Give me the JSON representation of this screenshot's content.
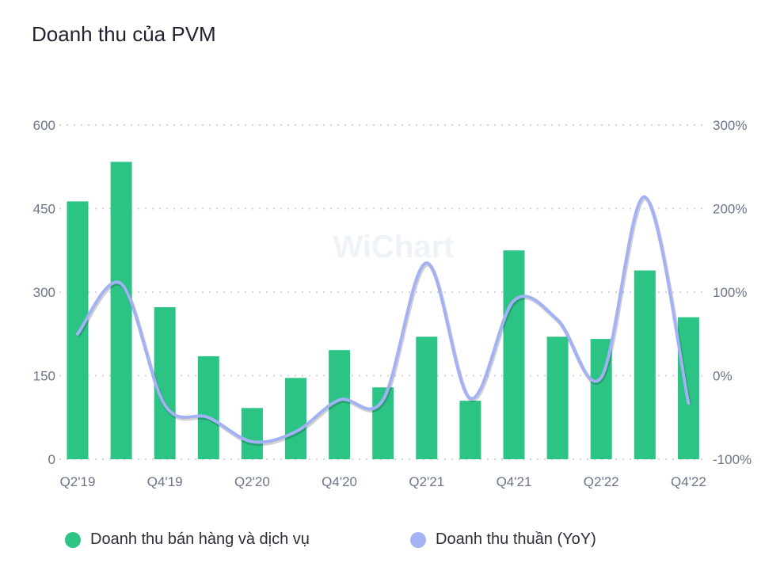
{
  "title": "Doanh thu của PVM",
  "watermark": "WiChart",
  "chart_data": {
    "type": "bar+line",
    "title": "Doanh thu của PVM",
    "categories": [
      "Q2'19",
      "Q3'19",
      "Q4'19",
      "Q1'20",
      "Q2'20",
      "Q3'20",
      "Q4'20",
      "Q1'21",
      "Q2'21",
      "Q3'21",
      "Q4'21",
      "Q1'22",
      "Q2'22",
      "Q3'22",
      "Q4'22"
    ],
    "x_tick_labels": [
      "Q2'19",
      "Q4'19",
      "Q2'20",
      "Q4'20",
      "Q2'21",
      "Q4'21",
      "Q2'22",
      "Q4'22"
    ],
    "left_axis": {
      "ylim": [
        0,
        600
      ],
      "ticks": [
        "0",
        "150",
        "300",
        "450",
        "600"
      ]
    },
    "right_axis": {
      "ylim": [
        -100,
        300
      ],
      "ticks": [
        "-100%",
        "0%",
        "100%",
        "200%",
        "300%"
      ]
    },
    "grid": true,
    "legend_placement": "bottom",
    "series": [
      {
        "name": "Doanh thu bán hàng và dịch vụ",
        "type": "bar",
        "axis": "left",
        "color": "#2bc485",
        "values": [
          463,
          534,
          273,
          185,
          92,
          146,
          196,
          129,
          220,
          105,
          375,
          220,
          216,
          339,
          255
        ]
      },
      {
        "name": "Doanh thu thuần (YoY)",
        "type": "line",
        "axis": "right",
        "color": "#a3b1f5",
        "values": [
          50,
          110,
          -35,
          -50,
          -79,
          -67,
          -29,
          -29,
          135,
          -27,
          90,
          67,
          -2,
          214,
          -33
        ]
      }
    ]
  }
}
